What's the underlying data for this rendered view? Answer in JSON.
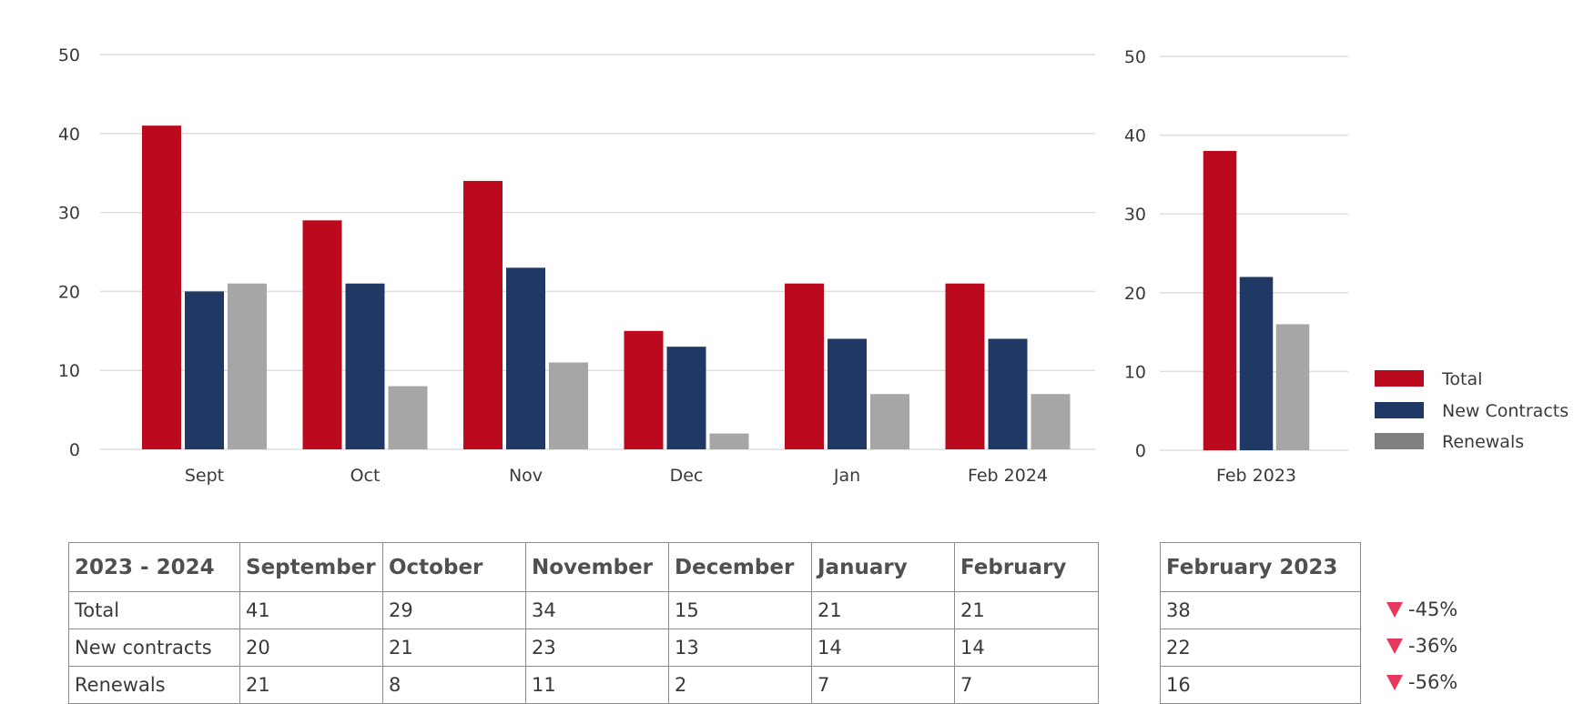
{
  "colors": {
    "total": "#bb0a1e",
    "new_contracts": "#1f3864",
    "renewals": "#a6a6a6",
    "renewals_legend": "#7f7f7f",
    "grid": "#dedede",
    "down": "#e8365d"
  },
  "chart_data": [
    {
      "type": "bar",
      "categories": [
        "Sept",
        "Oct",
        "Nov",
        "Dec",
        "Jan",
        "Feb 2024"
      ],
      "series": [
        {
          "name": "Total",
          "values": [
            41,
            29,
            34,
            15,
            21,
            21
          ]
        },
        {
          "name": "New Contracts",
          "values": [
            20,
            21,
            23,
            13,
            14,
            14
          ]
        },
        {
          "name": "Renewals",
          "values": [
            21,
            8,
            11,
            2,
            7,
            7
          ]
        }
      ],
      "ylim": [
        0,
        50
      ],
      "yticks": [
        0,
        10,
        20,
        30,
        40,
        50
      ],
      "grid": true
    },
    {
      "type": "bar",
      "categories": [
        "Feb 2023"
      ],
      "series": [
        {
          "name": "Total",
          "values": [
            38
          ]
        },
        {
          "name": "New Contracts",
          "values": [
            22
          ]
        },
        {
          "name": "Renewals",
          "values": [
            16
          ]
        }
      ],
      "ylim": [
        0,
        50
      ],
      "yticks": [
        0,
        10,
        20,
        30,
        40,
        50
      ],
      "grid": true,
      "legend": "right"
    }
  ],
  "legend": [
    "Total",
    "New Contracts",
    "Renewals"
  ],
  "table": {
    "header": [
      "2023 - 2024",
      "September",
      "October",
      "November",
      "December",
      "January",
      "February"
    ],
    "rows": [
      [
        "Total",
        "41",
        "29",
        "34",
        "15",
        "21",
        "21"
      ],
      [
        "New contracts",
        "20",
        "21",
        "23",
        "13",
        "14",
        "14"
      ],
      [
        "Renewals",
        "21",
        "8",
        "11",
        "2",
        "7",
        "7"
      ]
    ]
  },
  "comparison": {
    "header": "February 2023",
    "values": [
      "38",
      "22",
      "16"
    ],
    "changes": [
      "-45%",
      "-36%",
      "-56%"
    ]
  }
}
